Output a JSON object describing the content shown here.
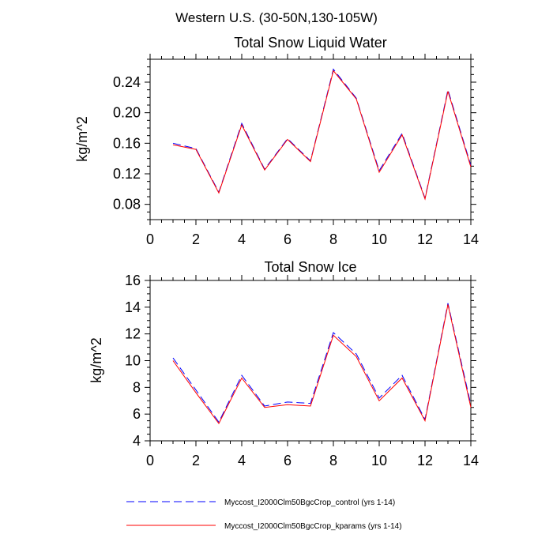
{
  "figure": {
    "main_title": "Western U.S. (30-50N,130-105W)"
  },
  "chart_data": [
    {
      "type": "line",
      "title": "Total Snow Liquid Water",
      "xlabel": "",
      "ylabel": "kg/m^2",
      "xlim": [
        0,
        14
      ],
      "ylim": [
        0.06,
        0.27
      ],
      "xticks": [
        0,
        2,
        4,
        6,
        8,
        10,
        12,
        14
      ],
      "xtick_labels": [
        "0",
        "2",
        "4",
        "6",
        "8",
        "10",
        "12",
        "14"
      ],
      "yticks": [
        0.08,
        0.12,
        0.16,
        0.2,
        0.24
      ],
      "ytick_labels": [
        "0.08",
        "0.12",
        "0.16",
        "0.20",
        "0.24"
      ],
      "x": [
        1,
        2,
        3,
        4,
        5,
        6,
        7,
        8,
        9,
        10,
        11,
        12,
        13,
        14
      ],
      "series": [
        {
          "name": "Myccost_I2000Clm50BgcCrop_control (yrs 1-14)",
          "color": "#0000ff",
          "style": "dashed",
          "values": [
            0.16,
            0.153,
            0.096,
            0.186,
            0.126,
            0.166,
            0.137,
            0.257,
            0.219,
            0.124,
            0.173,
            0.088,
            0.23,
            0.131
          ]
        },
        {
          "name": "Myccost_I2000Clm50BgcCrop_kparams (yrs 1-14)",
          "color": "#ff0000",
          "style": "solid",
          "values": [
            0.158,
            0.152,
            0.095,
            0.184,
            0.125,
            0.165,
            0.136,
            0.255,
            0.218,
            0.122,
            0.171,
            0.087,
            0.228,
            0.129
          ]
        }
      ]
    },
    {
      "type": "line",
      "title": "Total Snow Ice",
      "xlabel": "",
      "ylabel": "kg/m^2",
      "xlim": [
        0,
        14
      ],
      "ylim": [
        4,
        16
      ],
      "xticks": [
        0,
        2,
        4,
        6,
        8,
        10,
        12,
        14
      ],
      "xtick_labels": [
        "0",
        "2",
        "4",
        "6",
        "8",
        "10",
        "12",
        "14"
      ],
      "yticks": [
        4,
        6,
        8,
        10,
        12,
        14,
        16
      ],
      "ytick_labels": [
        "4",
        "6",
        "8",
        "10",
        "12",
        "14",
        "16"
      ],
      "x": [
        1,
        2,
        3,
        4,
        5,
        6,
        7,
        8,
        9,
        10,
        11,
        12,
        13,
        14
      ],
      "series": [
        {
          "name": "Myccost_I2000Clm50BgcCrop_control (yrs 1-14)",
          "color": "#0000ff",
          "style": "dashed",
          "values": [
            10.2,
            7.8,
            5.4,
            8.9,
            6.6,
            6.9,
            6.8,
            12.1,
            10.5,
            7.2,
            8.9,
            5.6,
            14.3,
            6.7
          ]
        },
        {
          "name": "Myccost_I2000Clm50BgcCrop_kparams (yrs 1-14)",
          "color": "#ff0000",
          "style": "solid",
          "values": [
            10.0,
            7.6,
            5.3,
            8.7,
            6.5,
            6.7,
            6.6,
            11.9,
            10.3,
            7.0,
            8.7,
            5.5,
            14.2,
            6.5
          ]
        }
      ]
    }
  ],
  "legend": {
    "placement": "bottom",
    "entries": [
      {
        "label": "Myccost_I2000Clm50BgcCrop_control (yrs 1-14)",
        "color": "#0000ff",
        "style": "dashed"
      },
      {
        "label": "Myccost_I2000Clm50BgcCrop_kparams (yrs 1-14)",
        "color": "#ff0000",
        "style": "solid"
      }
    ]
  }
}
